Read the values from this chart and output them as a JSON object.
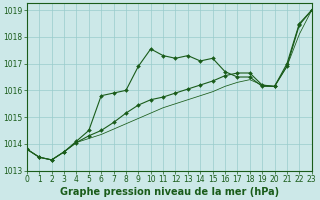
{
  "xlabel": "Graphe pression niveau de la mer (hPa)",
  "x_hours": [
    0,
    1,
    2,
    3,
    4,
    5,
    6,
    7,
    8,
    9,
    10,
    11,
    12,
    13,
    14,
    15,
    16,
    17,
    18,
    19,
    20,
    21,
    22,
    23
  ],
  "line1": [
    1013.8,
    1013.5,
    1013.4,
    1013.7,
    1014.1,
    1014.5,
    1015.8,
    1015.9,
    1016.0,
    1016.9,
    1017.55,
    1017.3,
    1017.2,
    1017.3,
    1017.1,
    1017.2,
    1016.7,
    1016.5,
    1016.5,
    1016.15,
    1016.15,
    1017.0,
    1018.5,
    1019.0
  ],
  "line2": [
    1013.8,
    1013.5,
    1013.4,
    1013.7,
    1014.05,
    1014.3,
    1014.5,
    1014.8,
    1015.15,
    1015.45,
    1015.65,
    1015.75,
    1015.9,
    1016.05,
    1016.2,
    1016.35,
    1016.55,
    1016.65,
    1016.65,
    1016.2,
    1016.15,
    1016.9,
    1018.45,
    1019.0
  ],
  "line3": [
    1013.8,
    1013.5,
    1013.4,
    1013.7,
    1014.05,
    1014.2,
    1014.35,
    1014.55,
    1014.75,
    1014.95,
    1015.15,
    1015.35,
    1015.5,
    1015.65,
    1015.8,
    1015.95,
    1016.15,
    1016.3,
    1016.4,
    1016.2,
    1016.15,
    1016.9,
    1018.1,
    1019.0
  ],
  "ylim": [
    1013.0,
    1019.25
  ],
  "yticks": [
    1013,
    1014,
    1015,
    1016,
    1017,
    1018,
    1019
  ],
  "xlim": [
    0,
    23
  ],
  "background_color": "#cce8e8",
  "grid_color": "#99cccc",
  "line_color": "#1a5c1a",
  "marker": "D",
  "marker_size": 2.0,
  "line_width": 0.8,
  "xlabel_color": "#1a5c1a",
  "tick_color": "#1a5c1a",
  "xlabel_fontsize": 7.0,
  "tick_fontsize": 5.5,
  "spine_color": "#1a5c1a"
}
